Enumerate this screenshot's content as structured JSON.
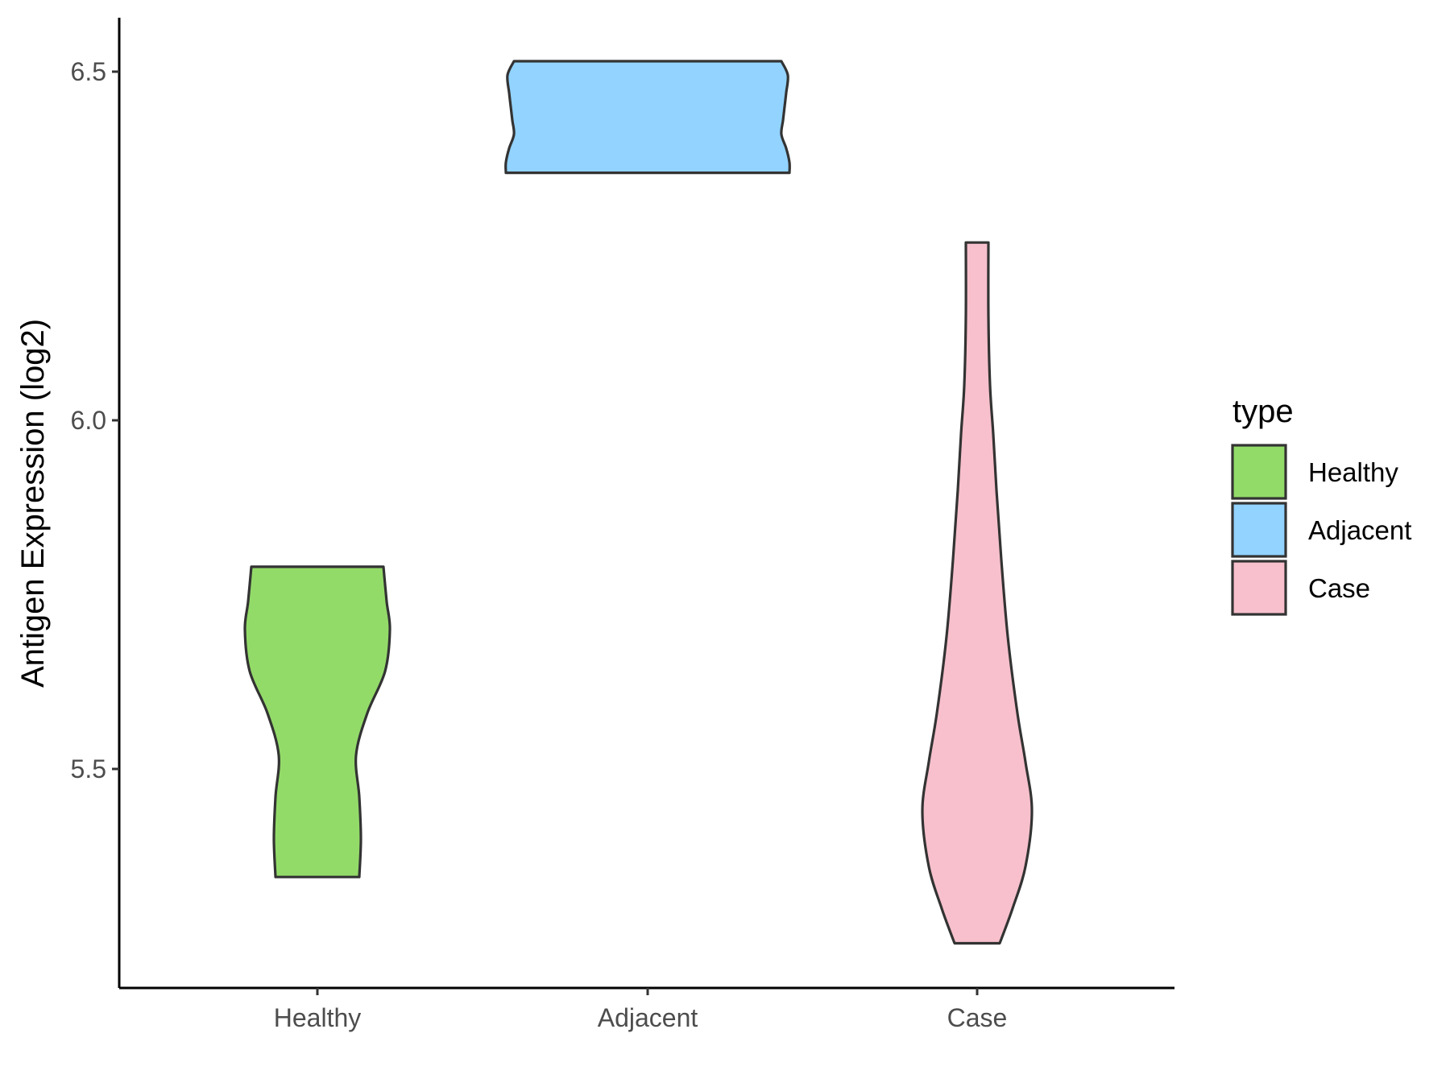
{
  "chart_data": {
    "type": "violin",
    "title": "",
    "xlabel": "",
    "ylabel": "Antigen Expression (log2)",
    "categories": [
      "Healthy",
      "Adjacent",
      "Case"
    ],
    "yticks": [
      "5.5",
      "6.0",
      "6.5"
    ],
    "ytick_values": [
      5.5,
      6.0,
      6.5
    ],
    "ylim": [
      5.16,
      6.58
    ],
    "grid": false,
    "legend": {
      "title": "type",
      "placement": "right",
      "entries": [
        "Healthy",
        "Adjacent",
        "Case"
      ]
    },
    "colors": {
      "Healthy": "#93DB69",
      "Adjacent": "#92D3FF",
      "Case": "#F7C0CC",
      "outline": "#333333",
      "axis": "#000000"
    },
    "series": [
      {
        "name": "Healthy",
        "profile": [
          [
            5.345,
            0.26
          ],
          [
            5.4,
            0.27
          ],
          [
            5.46,
            0.26
          ],
          [
            5.52,
            0.24
          ],
          [
            5.58,
            0.31
          ],
          [
            5.64,
            0.42
          ],
          [
            5.7,
            0.45
          ],
          [
            5.74,
            0.43
          ],
          [
            5.79,
            0.41
          ]
        ]
      },
      {
        "name": "Adjacent",
        "profile": [
          [
            6.355,
            0.88
          ],
          [
            6.37,
            0.88
          ],
          [
            6.39,
            0.86
          ],
          [
            6.41,
            0.83
          ],
          [
            6.43,
            0.84
          ],
          [
            6.45,
            0.85
          ],
          [
            6.47,
            0.86
          ],
          [
            6.495,
            0.87
          ],
          [
            6.515,
            0.83
          ]
        ]
      },
      {
        "name": "Case",
        "profile": [
          [
            5.25,
            0.14
          ],
          [
            5.3,
            0.22
          ],
          [
            5.36,
            0.3
          ],
          [
            5.44,
            0.34
          ],
          [
            5.51,
            0.3
          ],
          [
            5.58,
            0.25
          ],
          [
            5.69,
            0.19
          ],
          [
            5.8,
            0.15
          ],
          [
            5.9,
            0.12
          ],
          [
            5.98,
            0.1
          ],
          [
            6.05,
            0.08
          ],
          [
            6.15,
            0.07
          ],
          [
            6.255,
            0.07
          ]
        ]
      }
    ]
  }
}
